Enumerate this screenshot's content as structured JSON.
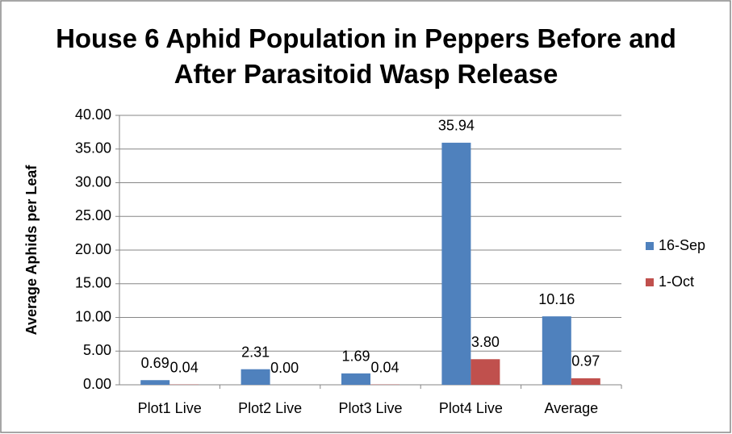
{
  "chart_data": {
    "type": "bar",
    "title": "House 6 Aphid Population in Peppers Before and After Parasitoid Wasp Release",
    "ylabel": "Average Aphids per Leaf",
    "categories": [
      "Plot1 Live",
      "Plot2 Live",
      "Plot3 Live",
      "Plot4 Live",
      "Average"
    ],
    "series": [
      {
        "name": "16-Sep",
        "color": "#4f81bd",
        "values": [
          0.69,
          2.31,
          1.69,
          35.94,
          10.16
        ],
        "value_labels": [
          "0.69",
          "2.31",
          "1.69",
          "35.94",
          "10.16"
        ]
      },
      {
        "name": "1-Oct",
        "color": "#c0504d",
        "values": [
          0.04,
          0,
          0.04,
          3.8,
          0.97
        ],
        "value_labels": [
          "0.04",
          "0.00",
          "0.04",
          "3.80",
          "0.97"
        ]
      }
    ],
    "ylim": [
      0,
      40
    ],
    "yticks": [
      {
        "value": 0,
        "label": "0.00"
      },
      {
        "value": 5,
        "label": "5.00"
      },
      {
        "value": 10,
        "label": "10.00"
      },
      {
        "value": 15,
        "label": "15.00"
      },
      {
        "value": 20,
        "label": "20.00"
      },
      {
        "value": 25,
        "label": "25.00"
      },
      {
        "value": 30,
        "label": "30.00"
      },
      {
        "value": 35,
        "label": "35.00"
      },
      {
        "value": 40,
        "label": "40.00"
      }
    ],
    "grid": true,
    "legend": "right"
  }
}
